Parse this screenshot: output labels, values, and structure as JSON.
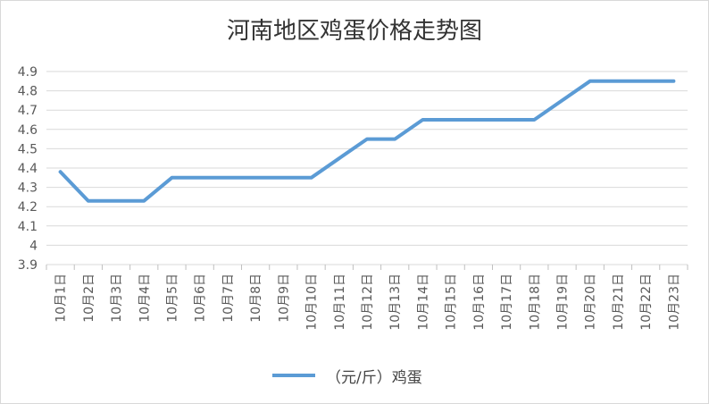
{
  "chart_data": {
    "type": "line",
    "title": "河南地区鸡蛋价格走势图",
    "categories": [
      "10月1日",
      "10月2日",
      "10月3日",
      "10月4日",
      "10月5日",
      "10月6日",
      "10月7日",
      "10月8日",
      "10月9日",
      "10月10日",
      "10月11日",
      "10月12日",
      "10月13日",
      "10月14日",
      "10月15日",
      "10月16日",
      "10月17日",
      "10月18日",
      "10月19日",
      "10月20日",
      "10月21日",
      "10月22日",
      "10月23日"
    ],
    "series": [
      {
        "name": "（元/斤）鸡蛋",
        "values": [
          4.38,
          4.23,
          4.23,
          4.23,
          4.35,
          4.35,
          4.35,
          4.35,
          4.35,
          4.35,
          4.45,
          4.55,
          4.55,
          4.65,
          4.65,
          4.65,
          4.65,
          4.65,
          4.75,
          4.85,
          4.85,
          4.85,
          4.85
        ]
      }
    ],
    "yticks": [
      "3.9",
      "4",
      "4.1",
      "4.2",
      "4.3",
      "4.4",
      "4.5",
      "4.6",
      "4.7",
      "4.8",
      "4.9"
    ],
    "ylim": [
      3.9,
      4.9
    ],
    "grid": true,
    "legend": "bottom",
    "color": "#5b9bd5"
  }
}
